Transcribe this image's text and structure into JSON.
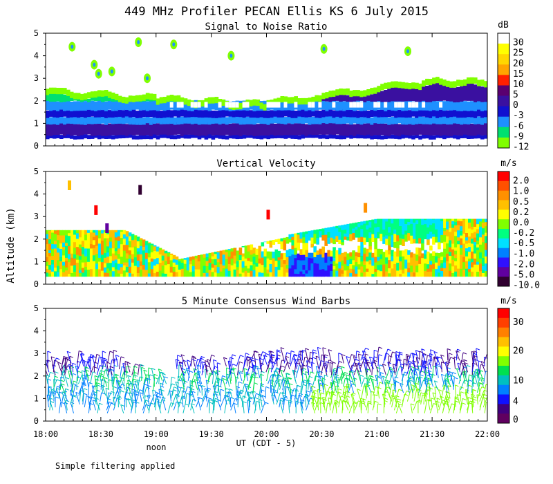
{
  "figure": {
    "title": "449 MHz Profiler PECAN Ellis KS  6 July 2015",
    "ylabel": "Altitude (km)",
    "xlabel": "UT  (CDT - 5)",
    "noon_label": "noon",
    "footnote": "Simple filtering applied",
    "x_ticks": [
      "18:00",
      "18:30",
      "19:00",
      "19:30",
      "20:00",
      "20:30",
      "21:00",
      "21:30",
      "22:00"
    ],
    "y_ticks": [
      "0",
      "1",
      "2",
      "3",
      "4",
      "5"
    ]
  },
  "chart_data": [
    {
      "type": "heatmap",
      "title": "Signal to Noise Ratio",
      "unit": "dB",
      "xlim": [
        "18:00",
        "22:00"
      ],
      "ylim": [
        0,
        5
      ],
      "colorbar_ticks": [
        "30",
        "25",
        "20",
        "15",
        "10",
        "5",
        "0",
        "-3",
        "-6",
        "-9",
        "-12"
      ],
      "colorbar_colors": [
        "#ffffff",
        "#ffff00",
        "#ffd700",
        "#ffa500",
        "#ff2000",
        "#5a0070",
        "#3a10a0",
        "#1010d0",
        "#1e90ff",
        "#00e070",
        "#80ff00"
      ]
    },
    {
      "type": "heatmap",
      "title": "Vertical Velocity",
      "unit": "m/s",
      "xlim": [
        "18:00",
        "22:00"
      ],
      "ylim": [
        0,
        5
      ],
      "colorbar_ticks": [
        "2.0",
        "1.0",
        "0.5",
        "0.2",
        "0.0",
        "-0.2",
        "-0.5",
        "-1.0",
        "-2.0",
        "-5.0",
        "-10.0"
      ],
      "colorbar_colors": [
        "#ff0000",
        "#ff5000",
        "#ff9000",
        "#ffc000",
        "#ffff00",
        "#80ff00",
        "#00ff80",
        "#00e0ff",
        "#0080ff",
        "#3010ff",
        "#6000a0",
        "#300030"
      ]
    },
    {
      "type": "wind_barbs",
      "title": "5 Minute Consensus Wind Barbs",
      "unit": "m/s",
      "xlim": [
        "18:00",
        "22:00"
      ],
      "ylim": [
        0,
        5
      ],
      "colorbar_ticks": [
        "30",
        "20",
        "10",
        "4",
        "0"
      ],
      "colorbar_colors": [
        "#ff0000",
        "#ff4000",
        "#ff8000",
        "#ffc000",
        "#ffff00",
        "#80ff00",
        "#00e050",
        "#00c0c0",
        "#0080ff",
        "#1010ff",
        "#400080",
        "#600060"
      ]
    }
  ]
}
